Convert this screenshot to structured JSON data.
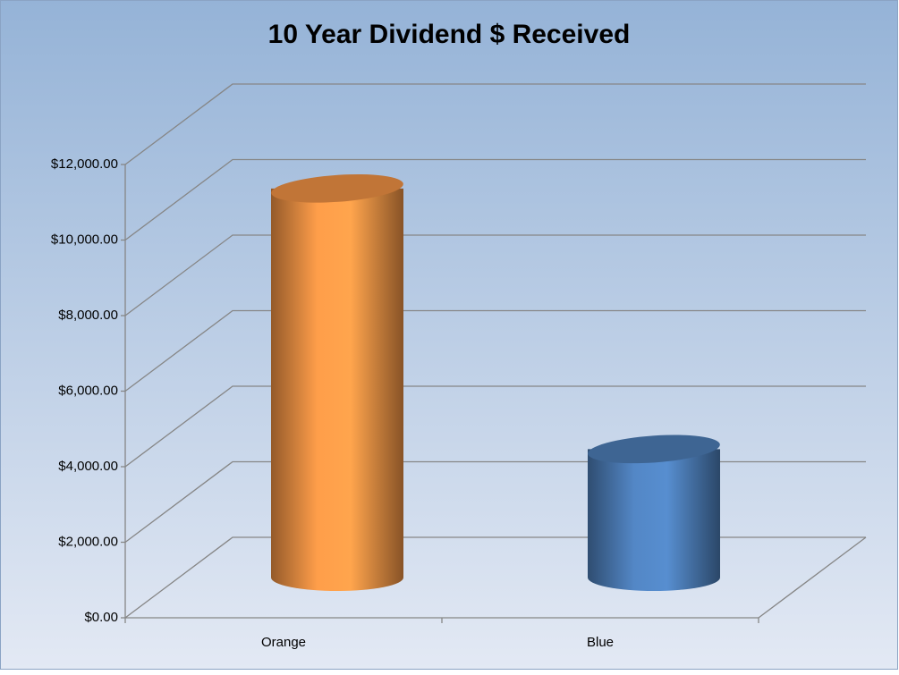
{
  "chart_data": {
    "type": "bar3d",
    "title": "10 Year Dividend $ Received",
    "categories": [
      "Orange",
      "Blue"
    ],
    "values": [
      10300,
      3400
    ],
    "colors": [
      "#f79646",
      "#4f81bd"
    ],
    "ylim": [
      0,
      12000
    ],
    "yticks": [
      {
        "value": 0,
        "label": "$0.00"
      },
      {
        "value": 2000,
        "label": "$2,000.00"
      },
      {
        "value": 4000,
        "label": "$4,000.00"
      },
      {
        "value": 6000,
        "label": "$6,000.00"
      },
      {
        "value": 8000,
        "label": "$8,000.00"
      },
      {
        "value": 10000,
        "label": "$10,000.00"
      },
      {
        "value": 12000,
        "label": "$12,000.00"
      }
    ],
    "grid": true
  }
}
